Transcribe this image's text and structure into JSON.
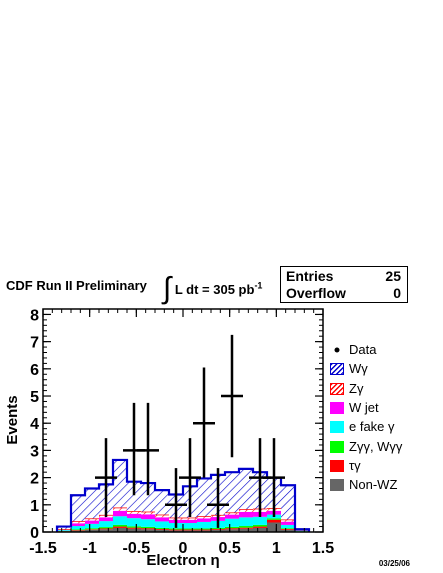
{
  "header": {
    "title": "CDF Run II Preliminary",
    "lumi_integral": "∫",
    "lumi_text": "L dt = 305 pb",
    "lumi_exponent": "-1"
  },
  "stats": {
    "entries_label": "Entries",
    "entries_value": "25",
    "overflow_label": "Overflow",
    "overflow_value": "0"
  },
  "date": "03/25/06",
  "legend": [
    {
      "label": "Data",
      "style": "marker"
    },
    {
      "label": "Wγ",
      "style": "hatch",
      "color": "#0000cc"
    },
    {
      "label": "Zγ",
      "style": "hatch",
      "color": "#ff0000"
    },
    {
      "label": "W jet",
      "style": "fill",
      "color": "#ff00ff"
    },
    {
      "label": "e fake γ",
      "style": "fill",
      "color": "#00ffff"
    },
    {
      "label": "Zγγ, Wγγ",
      "style": "fill",
      "color": "#00ff00"
    },
    {
      "label": "τγ",
      "style": "fill",
      "color": "#ff0000"
    },
    {
      "label": "Non-WZ",
      "style": "fill",
      "color": "#666666"
    }
  ],
  "chart_data": {
    "type": "bar",
    "xlabel": "Electron η",
    "ylabel": "Events",
    "xlim": [
      -1.5,
      1.5
    ],
    "ylim": [
      0,
      8.2
    ],
    "xticks": [
      "-1.5",
      "-1",
      "-0.5",
      "0",
      "0.5",
      "1",
      "1.5"
    ],
    "yticks": [
      "0",
      "1",
      "2",
      "3",
      "4",
      "5",
      "6",
      "7",
      "8"
    ],
    "bin_edges": [
      -1.35,
      -1.2,
      -1.05,
      -0.9,
      -0.75,
      -0.6,
      -0.45,
      -0.3,
      -0.15,
      0.0,
      0.15,
      0.3,
      0.45,
      0.6,
      0.75,
      0.9,
      1.05,
      1.2,
      1.35
    ],
    "stack": [
      {
        "name": "Non-WZ",
        "color": "#666666",
        "values": [
          0.02,
          0.05,
          0.08,
          0.1,
          0.15,
          0.12,
          0.1,
          0.08,
          0.06,
          0.06,
          0.06,
          0.08,
          0.1,
          0.12,
          0.15,
          0.35,
          0.08,
          0.01
        ]
      },
      {
        "name": "τγ",
        "color": "#ff0000",
        "values": [
          0.01,
          0.02,
          0.02,
          0.03,
          0.05,
          0.04,
          0.04,
          0.03,
          0.03,
          0.03,
          0.03,
          0.03,
          0.04,
          0.04,
          0.05,
          0.1,
          0.03,
          0.01
        ]
      },
      {
        "name": "Zγγ, Wγγ",
        "color": "#00ff00",
        "values": [
          0.01,
          0.03,
          0.04,
          0.05,
          0.06,
          0.05,
          0.05,
          0.04,
          0.04,
          0.04,
          0.04,
          0.04,
          0.05,
          0.06,
          0.06,
          0.05,
          0.03,
          0.01
        ]
      },
      {
        "name": "e fake γ",
        "color": "#00ffff",
        "values": [
          0.03,
          0.12,
          0.16,
          0.22,
          0.32,
          0.3,
          0.28,
          0.24,
          0.2,
          0.2,
          0.24,
          0.26,
          0.3,
          0.32,
          0.3,
          0.14,
          0.12,
          0.02
        ]
      },
      {
        "name": "W jet",
        "color": "#ff00ff",
        "values": [
          0.02,
          0.1,
          0.12,
          0.14,
          0.2,
          0.16,
          0.18,
          0.15,
          0.12,
          0.12,
          0.13,
          0.14,
          0.15,
          0.2,
          0.18,
          0.14,
          0.12,
          0.02
        ]
      },
      {
        "name": "Zγ",
        "color": "#ff0000",
        "values": [
          0.01,
          0.08,
          0.08,
          0.09,
          0.12,
          0.1,
          0.1,
          0.1,
          0.08,
          0.08,
          0.08,
          0.08,
          0.08,
          0.1,
          0.12,
          0.1,
          0.08,
          0.01
        ]
      },
      {
        "name": "Wγ",
        "color": "#0000cc",
        "values": [
          0.1,
          0.95,
          1.1,
          1.12,
          1.75,
          1.08,
          1.05,
          0.9,
          0.85,
          1.15,
          1.39,
          1.47,
          1.48,
          1.48,
          1.34,
          1.12,
          1.26,
          0.02
        ]
      }
    ],
    "data_points": [
      {
        "x": -0.825,
        "y": 2,
        "err_up": 1.45,
        "err_down": 1.45
      },
      {
        "x": -0.525,
        "y": 3,
        "err_up": 1.75,
        "err_down": 1.65
      },
      {
        "x": -0.375,
        "y": 3,
        "err_up": 1.75,
        "err_down": 1.65
      },
      {
        "x": -0.075,
        "y": 1,
        "err_up": 1.35,
        "err_down": 0.85
      },
      {
        "x": 0.075,
        "y": 2,
        "err_up": 1.45,
        "err_down": 1.45
      },
      {
        "x": 0.225,
        "y": 4,
        "err_up": 2.05,
        "err_down": 2.0
      },
      {
        "x": 0.375,
        "y": 1,
        "err_up": 1.35,
        "err_down": 0.85
      },
      {
        "x": 0.525,
        "y": 5,
        "err_up": 2.25,
        "err_down": 2.25
      },
      {
        "x": 0.825,
        "y": 2,
        "err_up": 1.45,
        "err_down": 1.45
      },
      {
        "x": 0.975,
        "y": 2,
        "err_up": 1.45,
        "err_down": 1.45
      }
    ]
  }
}
